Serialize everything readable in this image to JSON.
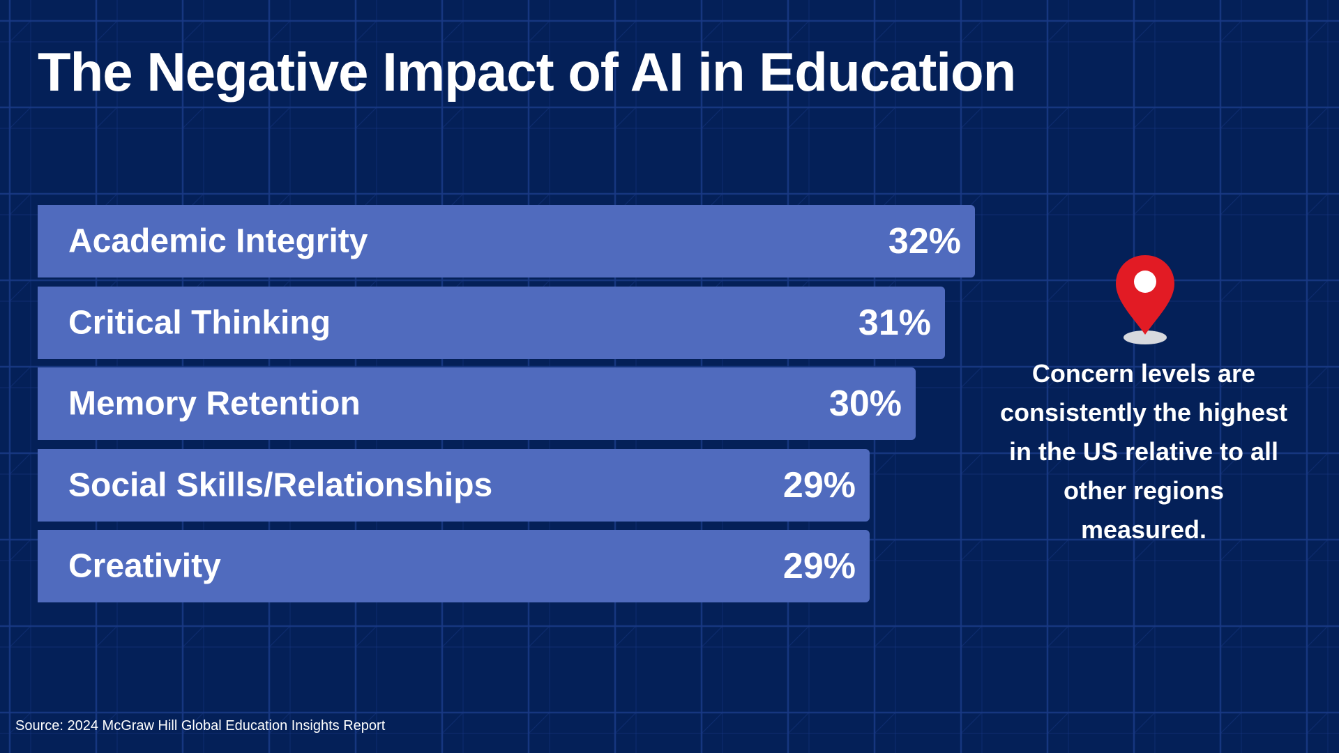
{
  "chart_data": {
    "type": "bar",
    "orientation": "horizontal",
    "title": "The Negative Impact of AI in Education",
    "categories": [
      "Academic Integrity",
      "Critical Thinking",
      "Memory Retention",
      "Social Skills/Relationships",
      "Creativity"
    ],
    "values": [
      32,
      31,
      30,
      29,
      29
    ],
    "value_labels": [
      "32%",
      "31%",
      "30%",
      "29%",
      "29%"
    ],
    "bar_color": "#506bbe",
    "grid": false,
    "legend": "none"
  },
  "callout": {
    "icon": "map-pin-icon",
    "icon_color": "#e21b24",
    "text": "Concern levels are consistently the highest in the US relative to all other regions measured."
  },
  "source": "Source: 2024 McGraw Hill Global Education Insights Report",
  "colors": {
    "background": "#042058",
    "grid_line": "#1a3a86"
  }
}
